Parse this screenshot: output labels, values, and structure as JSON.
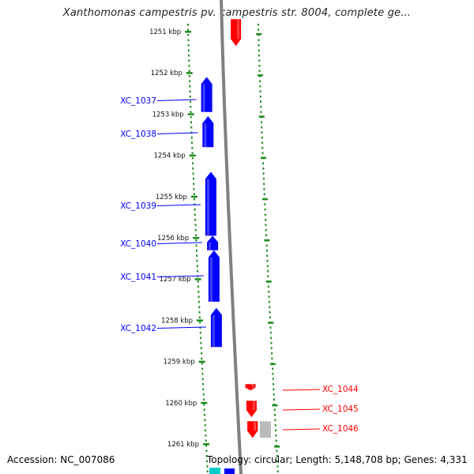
{
  "title": "Xanthomonas campestris pv. campestris str. 8004, complete ge...",
  "footer": {
    "accession": "Accession: NC_007086",
    "summary": "Topology: circular; Length: 5,148,708 bp; Genes: 4,331"
  },
  "colors": {
    "forward_gene": "#ff0000",
    "reverse_gene": "#0000ff",
    "other_feature": "#bbbbbb",
    "tick": "#1a8a1a",
    "backbone": "#808080",
    "extra_feature": "#00cccc"
  },
  "ruler": {
    "unit": "kbp",
    "ticks": [
      1251,
      1252,
      1253,
      1254,
      1255,
      1256,
      1257,
      1258,
      1259,
      1260,
      1261
    ]
  },
  "genes": [
    {
      "label": "XC_1037",
      "strand": "reverse",
      "start_kbp": 1252.1,
      "end_kbp": 1252.95
    },
    {
      "label": "XC_1038",
      "strand": "reverse",
      "start_kbp": 1253.05,
      "end_kbp": 1253.8
    },
    {
      "label": "XC_1039",
      "strand": "reverse",
      "start_kbp": 1254.4,
      "end_kbp": 1255.95
    },
    {
      "label": "XC_1040",
      "strand": "reverse",
      "start_kbp": 1255.95,
      "end_kbp": 1256.3
    },
    {
      "label": "XC_1041",
      "strand": "reverse",
      "start_kbp": 1256.3,
      "end_kbp": 1257.55
    },
    {
      "label": "XC_1042",
      "strand": "reverse",
      "start_kbp": 1257.7,
      "end_kbp": 1258.65
    },
    {
      "label": "XC_1044",
      "strand": "forward",
      "start_kbp": 1259.55,
      "end_kbp": 1259.7
    },
    {
      "label": "XC_1045",
      "strand": "forward",
      "start_kbp": 1259.95,
      "end_kbp": 1260.35
    },
    {
      "label": "XC_1046",
      "strand": "forward",
      "start_kbp": 1260.45,
      "end_kbp": 1260.85
    }
  ],
  "unlabeled_features": [
    {
      "strand": "forward",
      "start_kbp": 1250.7,
      "end_kbp": 1251.35
    },
    {
      "strand": "forward",
      "start_kbp": 1260.45,
      "end_kbp": 1260.85
    }
  ]
}
